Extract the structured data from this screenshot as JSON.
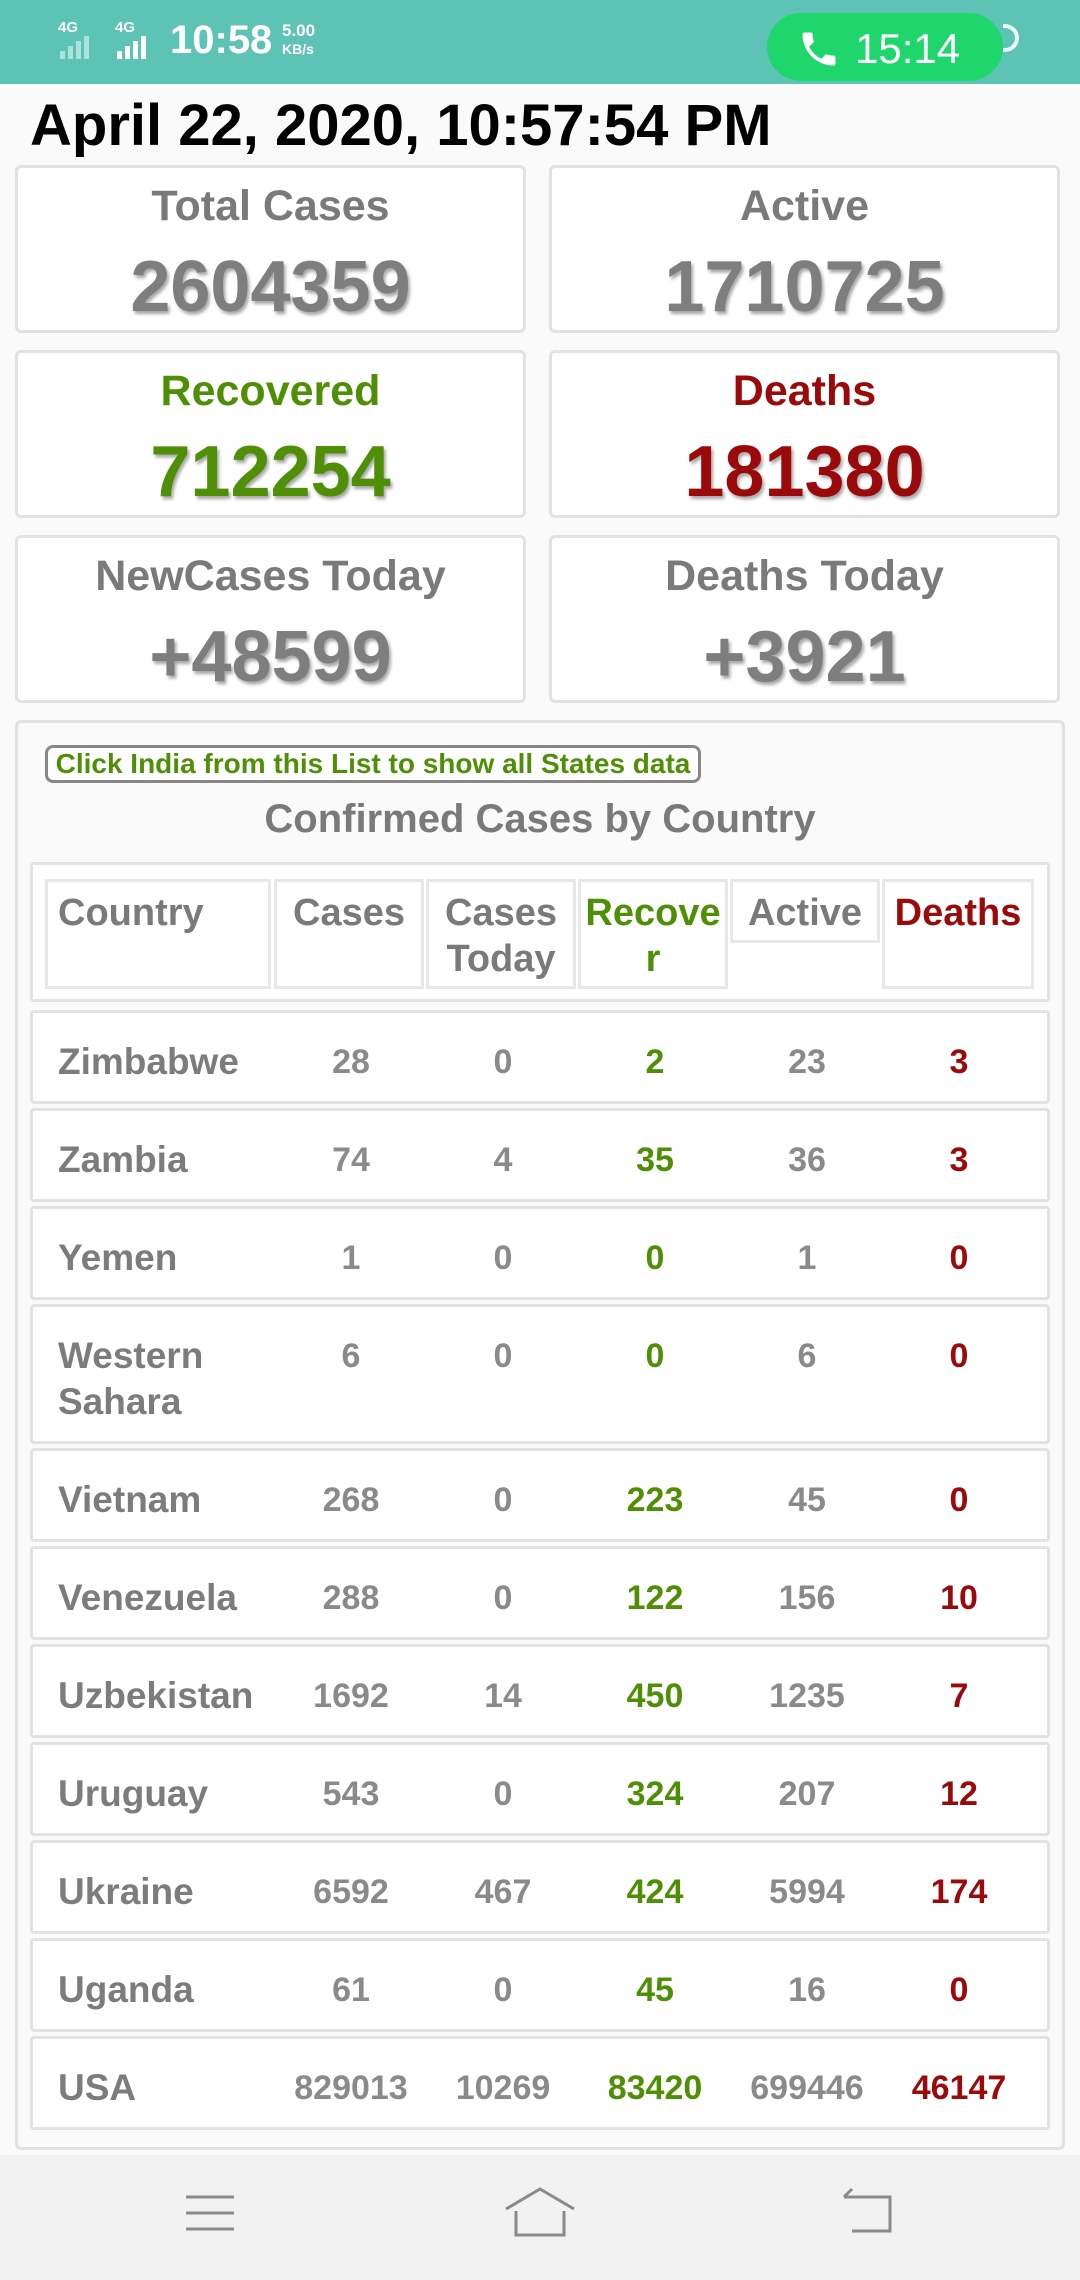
{
  "status_bar": {
    "network_1": "4G",
    "network_2": "4G",
    "time": "10:58",
    "speed_value": "5.00",
    "speed_unit": "KB/s",
    "call_timer": "15:14"
  },
  "datetime": "April 22, 2020, 10:57:54 PM",
  "stats": {
    "total_cases": {
      "label": "Total Cases",
      "value": "2604359"
    },
    "active": {
      "label": "Active",
      "value": "1710725"
    },
    "recovered": {
      "label": "Recovered",
      "value": "712254"
    },
    "deaths": {
      "label": "Deaths",
      "value": "181380"
    },
    "new_cases_today": {
      "label": "NewCases Today",
      "value": "+48599"
    },
    "deaths_today": {
      "label": "Deaths Today",
      "value": "+3921"
    }
  },
  "note_button": "Click India from this List to show all States data",
  "section_title": "Confirmed Cases by Country",
  "table": {
    "headers": {
      "country": "Country",
      "cases": "Cases",
      "cases_today_1": "Cases",
      "cases_today_2": "Today",
      "recovered_1": "Recove",
      "recovered_2": "r",
      "active": "Active",
      "deaths": "Deaths"
    },
    "rows": [
      {
        "country_1": "Zimbabwe",
        "country_2": "",
        "cases": "28",
        "today": "0",
        "recovered": "2",
        "active": "23",
        "deaths": "3"
      },
      {
        "country_1": "Zambia",
        "country_2": "",
        "cases": "74",
        "today": "4",
        "recovered": "35",
        "active": "36",
        "deaths": "3"
      },
      {
        "country_1": "Yemen",
        "country_2": "",
        "cases": "1",
        "today": "0",
        "recovered": "0",
        "active": "1",
        "deaths": "0"
      },
      {
        "country_1": "Western",
        "country_2": "Sahara",
        "cases": "6",
        "today": "0",
        "recovered": "0",
        "active": "6",
        "deaths": "0"
      },
      {
        "country_1": "Vietnam",
        "country_2": "",
        "cases": "268",
        "today": "0",
        "recovered": "223",
        "active": "45",
        "deaths": "0"
      },
      {
        "country_1": "Venezuela",
        "country_2": "",
        "cases": "288",
        "today": "0",
        "recovered": "122",
        "active": "156",
        "deaths": "10"
      },
      {
        "country_1": "Uzbekistan",
        "country_2": "",
        "cases": "1692",
        "today": "14",
        "recovered": "450",
        "active": "1235",
        "deaths": "7"
      },
      {
        "country_1": "Uruguay",
        "country_2": "",
        "cases": "543",
        "today": "0",
        "recovered": "324",
        "active": "207",
        "deaths": "12"
      },
      {
        "country_1": "Ukraine",
        "country_2": "",
        "cases": "6592",
        "today": "467",
        "recovered": "424",
        "active": "5994",
        "deaths": "174"
      },
      {
        "country_1": "Uganda",
        "country_2": "",
        "cases": "61",
        "today": "0",
        "recovered": "45",
        "active": "16",
        "deaths": "0"
      },
      {
        "country_1": "USA",
        "country_2": "",
        "cases": "829013",
        "today": "10269",
        "recovered": "83420",
        "active": "699446",
        "deaths": "46147"
      }
    ]
  },
  "nav": {
    "menu_icon": "menu-icon",
    "home_icon": "home-icon",
    "back_icon": "back-icon"
  }
}
